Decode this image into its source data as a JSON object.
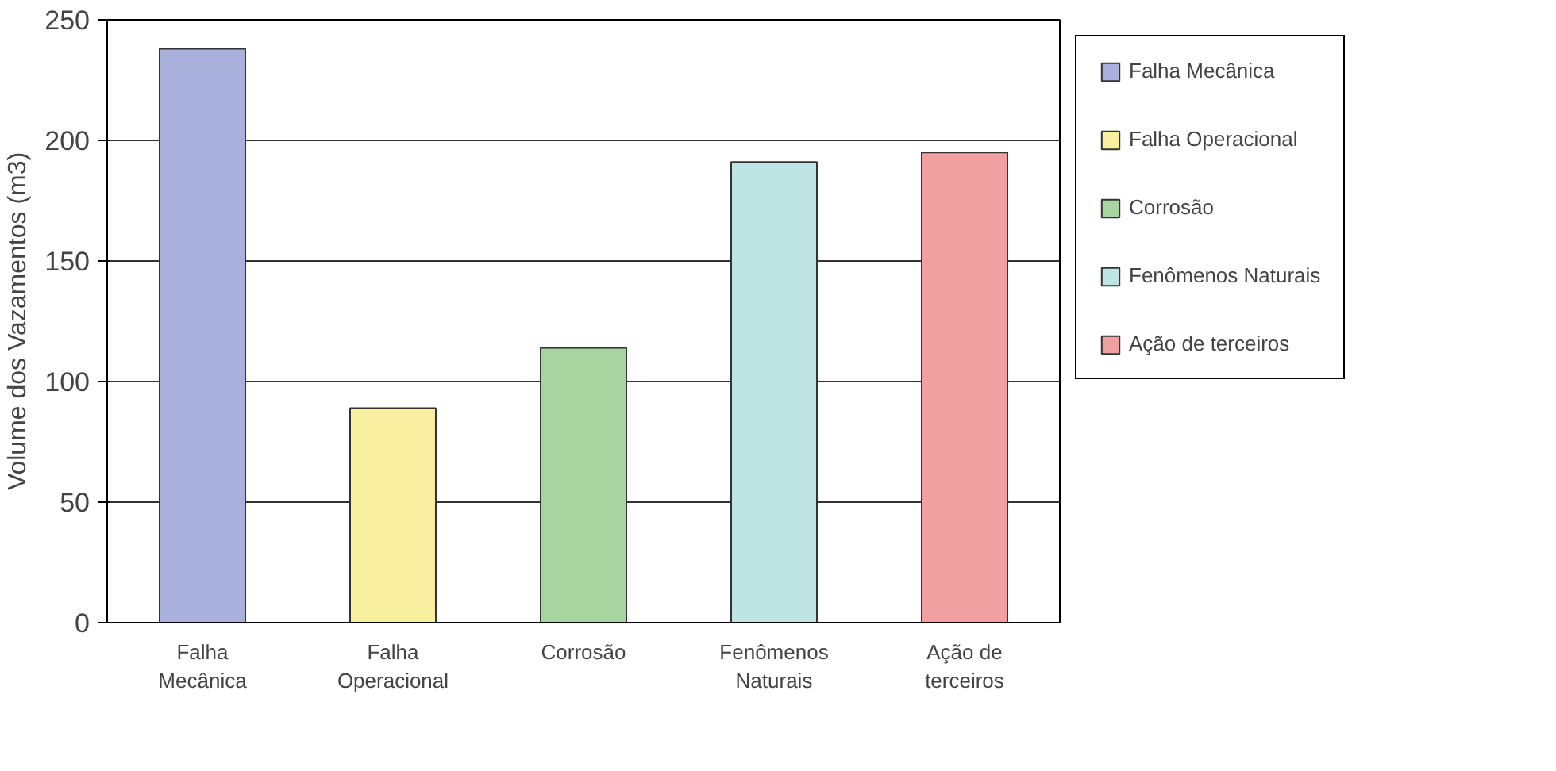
{
  "chart_data": {
    "type": "bar",
    "ylabel": "Volume dos Vazamentos (m3)",
    "categories": [
      "Falha Mecânica",
      "Falha Operacional",
      "Corrosão",
      "Fenômenos Naturais",
      "Ação de terceiros"
    ],
    "series": [
      {
        "name": "Falha Mecânica",
        "color": "#aab0dc",
        "values": [
          238,
          null,
          null,
          null,
          null
        ]
      },
      {
        "name": "Falha Operacional",
        "color": "#f8f0a0",
        "values": [
          null,
          89,
          null,
          null,
          null
        ]
      },
      {
        "name": "Corrosão",
        "color": "#a8d4a0",
        "values": [
          null,
          null,
          114,
          null,
          null
        ]
      },
      {
        "name": "Fenômenos Naturais",
        "color": "#bfe4e4",
        "values": [
          null,
          null,
          null,
          191,
          null
        ]
      },
      {
        "name": "Ação de terceiros",
        "color": "#f0a0a0",
        "values": [
          null,
          null,
          null,
          null,
          195
        ]
      }
    ],
    "ylim": [
      0,
      250
    ],
    "yticks": [
      0,
      50,
      100,
      150,
      200,
      250
    ],
    "grid": "y",
    "legend": "right"
  }
}
